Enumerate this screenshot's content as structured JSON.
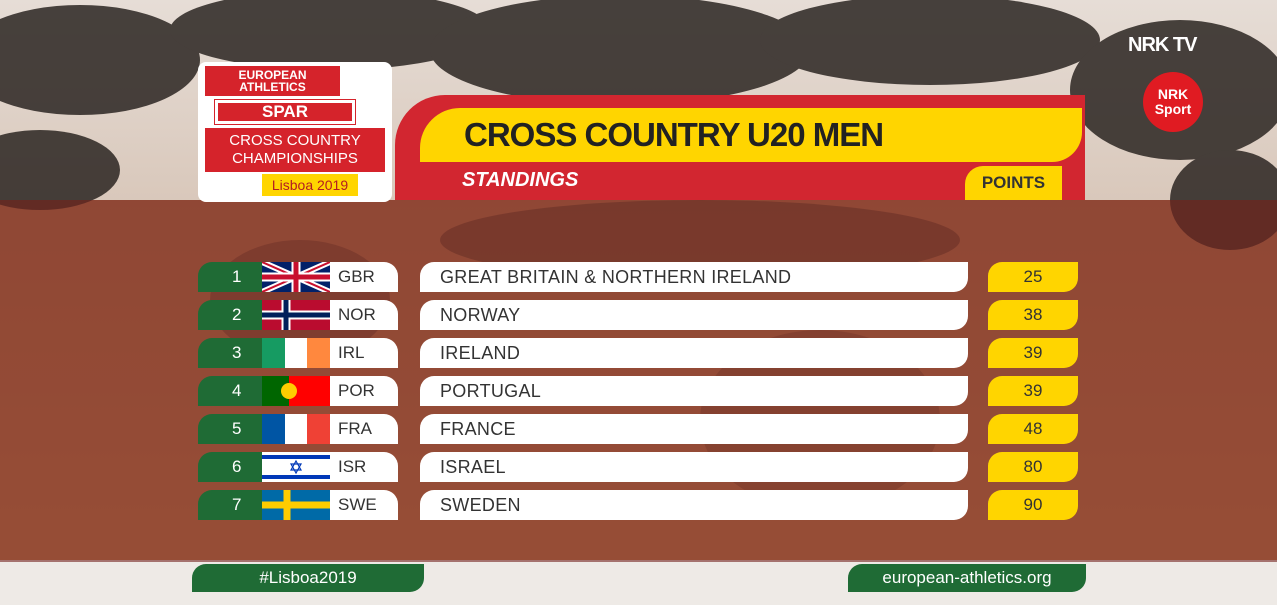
{
  "broadcaster": {
    "logo": "NRK TV",
    "channel": "NRK",
    "channel_sub": "Sport"
  },
  "event": {
    "organizer": "EUROPEAN ATHLETICS",
    "sponsor": "SPAR",
    "name": "CROSS COUNTRY CHAMPIONSHIPS",
    "edition": "Lisboa 2019"
  },
  "header": {
    "title": "CROSS COUNTRY U20 MEN",
    "subtitle": "STANDINGS",
    "points_label": "POINTS"
  },
  "table": {
    "rows": [
      [
        1,
        "GBR",
        "GREAT BRITAIN & NORTHERN IRELAND",
        25
      ],
      [
        2,
        "NOR",
        "NORWAY",
        38
      ],
      [
        3,
        "IRL",
        "IRELAND",
        39
      ],
      [
        4,
        "POR",
        "PORTUGAL",
        39
      ],
      [
        5,
        "FRA",
        "FRANCE",
        48
      ],
      [
        6,
        "ISR",
        "ISRAEL",
        80
      ],
      [
        7,
        "SWE",
        "SWEDEN",
        90
      ]
    ]
  },
  "footer": {
    "hashtag": "#Lisboa2019",
    "website": "european-athletics.org"
  }
}
